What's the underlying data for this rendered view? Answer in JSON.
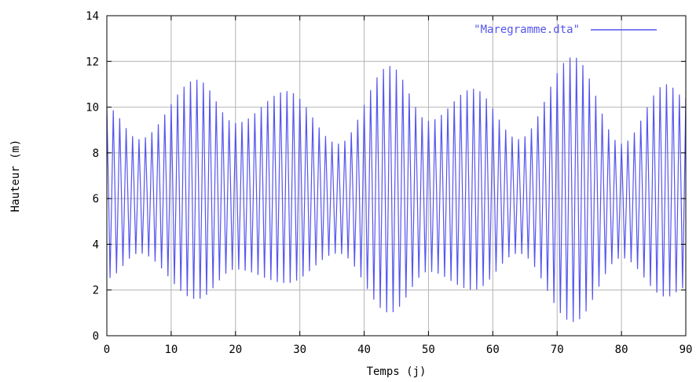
{
  "chart_data": {
    "type": "line",
    "title": "",
    "xlabel": "Temps (j)",
    "ylabel": "Hauteur (m)",
    "xlim": [
      0,
      90
    ],
    "ylim": [
      0,
      14
    ],
    "xticks": [
      "0",
      "10",
      "20",
      "30",
      "40",
      "50",
      "60",
      "70",
      "80",
      "90"
    ],
    "yticks": [
      "0",
      "2",
      "4",
      "6",
      "8",
      "10",
      "12",
      "14"
    ],
    "grid": true,
    "legend_position": "top-right",
    "series_color": "#5555ee",
    "series": [
      {
        "name": "\"Maregramme.dta\"",
        "sampling_step_days": 0.25,
        "mean_level_m": 6.0,
        "envelope": {
          "days": [
            0,
            5,
            14,
            20,
            28,
            36,
            44,
            50,
            57,
            64,
            72.5,
            80,
            87,
            90
          ],
          "upper_m": [
            10.0,
            8.6,
            11.2,
            9.3,
            10.7,
            8.4,
            11.8,
            9.4,
            10.8,
            8.6,
            12.2,
            8.4,
            11.0,
            10.4
          ],
          "lower_m": [
            2.5,
            3.6,
            1.6,
            2.9,
            2.3,
            3.6,
            1.0,
            2.8,
            2.0,
            3.6,
            0.6,
            3.4,
            1.7,
            2.1
          ]
        }
      }
    ]
  }
}
